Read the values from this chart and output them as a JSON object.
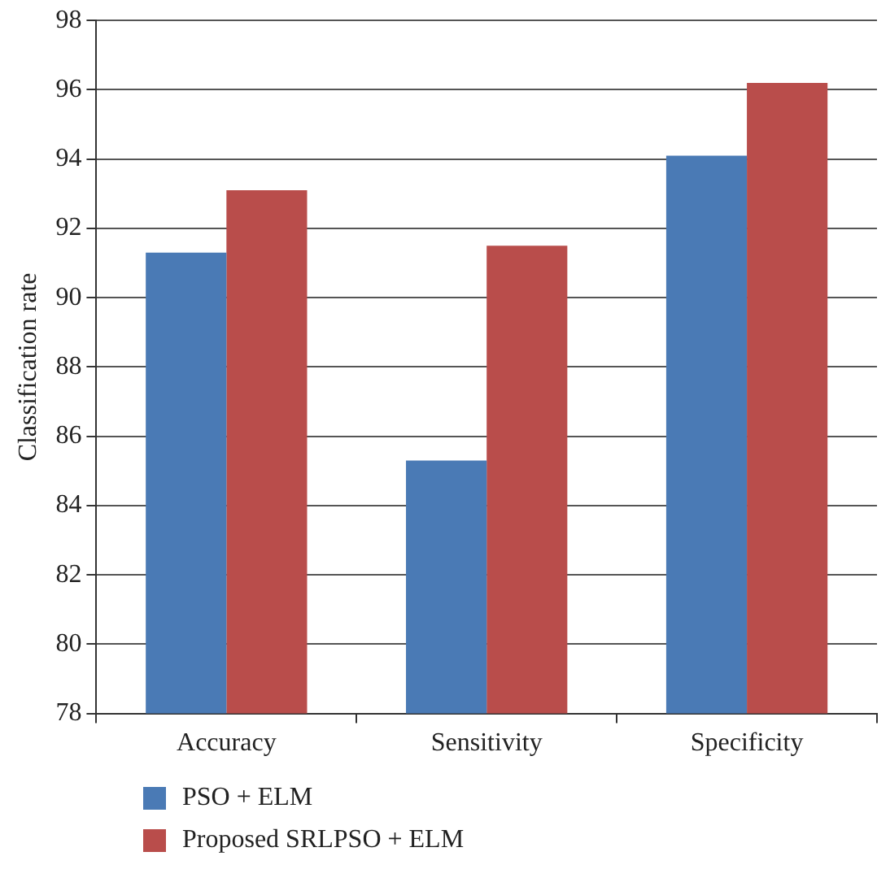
{
  "chart_data": {
    "type": "bar",
    "ylabel": "Classification rate",
    "categories": [
      "Accuracy",
      "Sensitivity",
      "Specificity"
    ],
    "series": [
      {
        "name": "PSO + ELM",
        "color": "#4a7ab5",
        "values": [
          91.3,
          85.3,
          94.1
        ]
      },
      {
        "name": "Proposed SRLPSO + ELM",
        "color": "#b94d4b",
        "values": [
          93.1,
          91.5,
          96.2
        ]
      }
    ],
    "ylim": [
      78,
      98
    ],
    "yticks": [
      78,
      80,
      82,
      84,
      86,
      88,
      90,
      92,
      94,
      96,
      98
    ],
    "grid": "y",
    "legend": "bottom"
  }
}
